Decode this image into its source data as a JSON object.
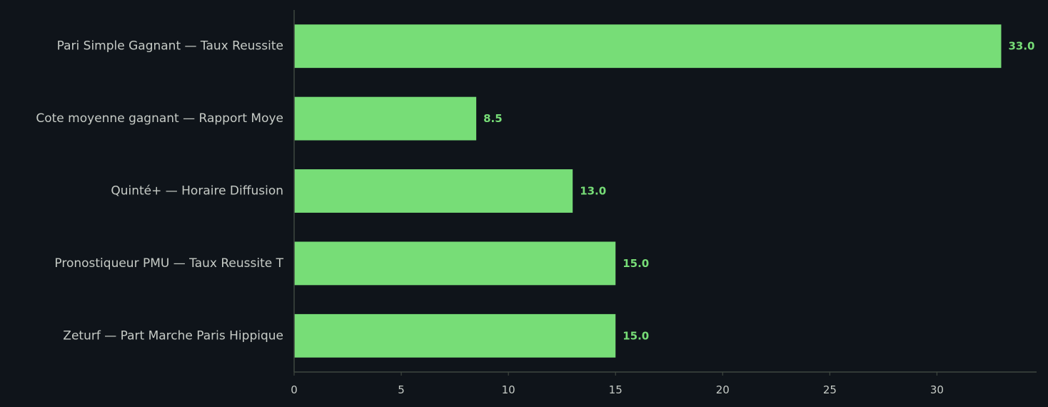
{
  "colors": {
    "background": "#0f141a",
    "bar": "#77dd77",
    "axis": "#3e463f",
    "text": "#c6cbc6",
    "data_label": "#77dd77"
  },
  "chart_data": {
    "type": "bar",
    "orientation": "horizontal",
    "categories": [
      "Pari Simple Gagnant — Taux Reussite",
      "Cote moyenne gagnant — Rapport Moye",
      "Quinté+ — Horaire Diffusion",
      "Pronostiqueur PMU — Taux Reussite T",
      "Zeturf — Part Marche Paris Hippique"
    ],
    "values": [
      33.0,
      8.5,
      13.0,
      15.0,
      15.0
    ],
    "data_labels": [
      "33.0",
      "8.5",
      "13.0",
      "15.0",
      "15.0"
    ],
    "xticks": [
      0,
      5,
      10,
      15,
      20,
      25,
      30
    ],
    "xlim": [
      0,
      34.65
    ],
    "title": "",
    "xlabel": "",
    "ylabel": "",
    "grid": false,
    "legend": "none"
  }
}
